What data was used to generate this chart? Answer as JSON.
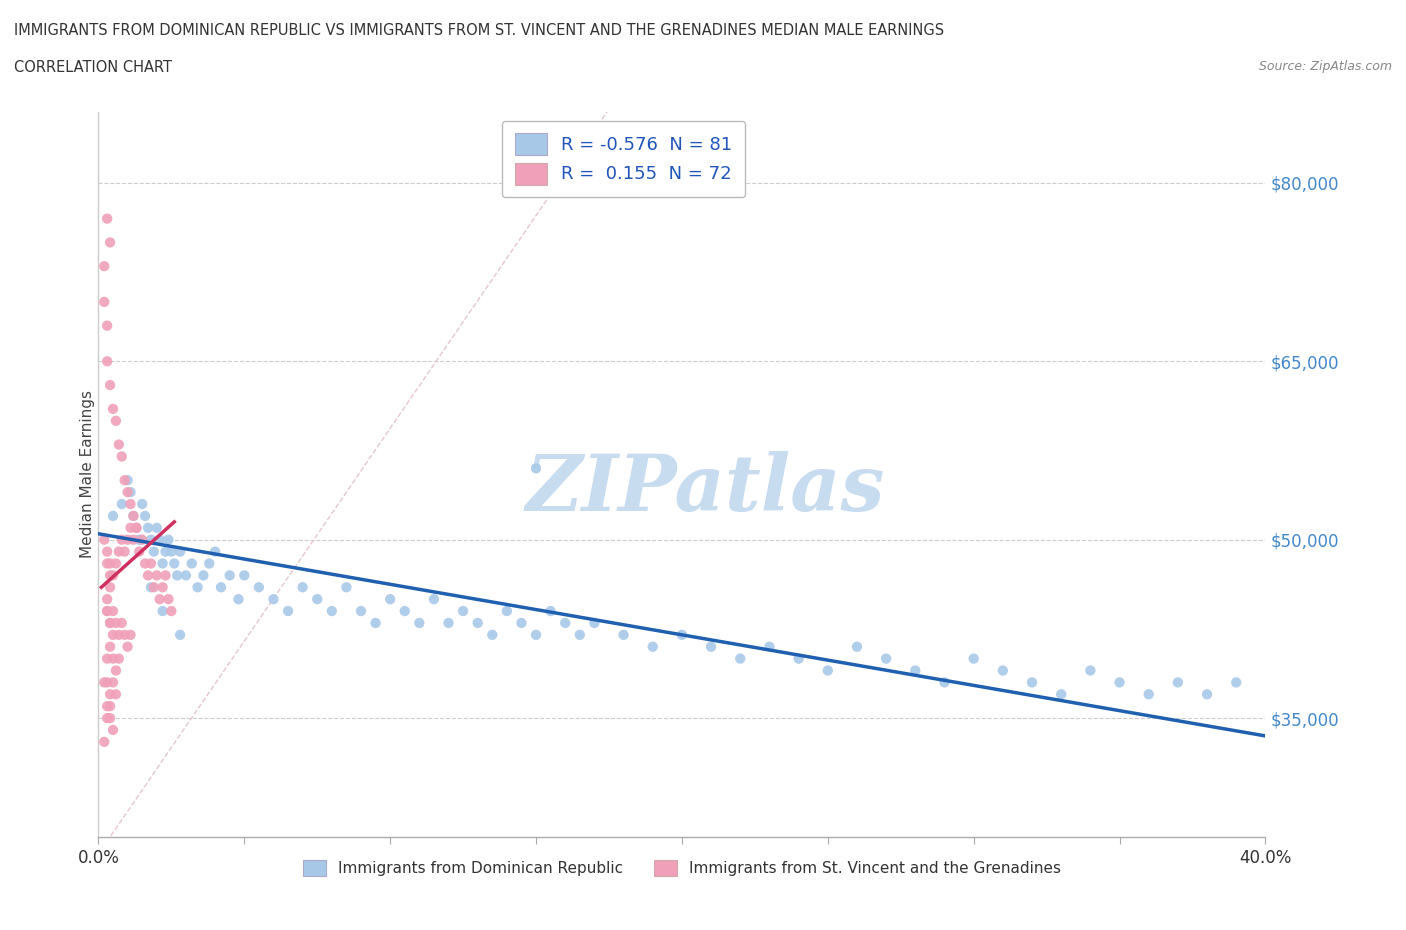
{
  "title_line1": "IMMIGRANTS FROM DOMINICAN REPUBLIC VS IMMIGRANTS FROM ST. VINCENT AND THE GRENADINES MEDIAN MALE EARNINGS",
  "title_line2": "CORRELATION CHART",
  "source_text": "Source: ZipAtlas.com",
  "ylabel": "Median Male Earnings",
  "color_blue": "#A8C8E8",
  "color_pink": "#F0A0B8",
  "color_blue_line": "#2060B0",
  "color_pink_line": "#D03060",
  "color_diagonal": "#E0B8C0",
  "watermark_color": "#C8DCF0",
  "ytick_color": "#4488CC",
  "legend_label1": "R = -0.576  N = 81",
  "legend_label2": "R =  0.155  N = 72",
  "bot_label1": "Immigrants from Dominican Republic",
  "bot_label2": "Immigrants from St. Vincent and the Grenadines",
  "blue_x": [
    0.005,
    0.008,
    0.01,
    0.011,
    0.012,
    0.013,
    0.014,
    0.015,
    0.016,
    0.017,
    0.018,
    0.019,
    0.02,
    0.021,
    0.022,
    0.023,
    0.024,
    0.025,
    0.026,
    0.027,
    0.028,
    0.03,
    0.032,
    0.034,
    0.036,
    0.038,
    0.04,
    0.042,
    0.045,
    0.048,
    0.05,
    0.055,
    0.06,
    0.065,
    0.07,
    0.075,
    0.08,
    0.085,
    0.09,
    0.095,
    0.1,
    0.105,
    0.11,
    0.115,
    0.12,
    0.125,
    0.13,
    0.135,
    0.14,
    0.145,
    0.15,
    0.155,
    0.16,
    0.165,
    0.17,
    0.18,
    0.19,
    0.2,
    0.21,
    0.22,
    0.23,
    0.24,
    0.25,
    0.26,
    0.27,
    0.28,
    0.29,
    0.3,
    0.31,
    0.32,
    0.33,
    0.34,
    0.35,
    0.36,
    0.37,
    0.38,
    0.39,
    0.018,
    0.022,
    0.028,
    0.15
  ],
  "blue_y": [
    52000,
    53000,
    55000,
    54000,
    52000,
    51000,
    50000,
    53000,
    52000,
    51000,
    50000,
    49000,
    51000,
    50000,
    48000,
    49000,
    50000,
    49000,
    48000,
    47000,
    49000,
    47000,
    48000,
    46000,
    47000,
    48000,
    49000,
    46000,
    47000,
    45000,
    47000,
    46000,
    45000,
    44000,
    46000,
    45000,
    44000,
    46000,
    44000,
    43000,
    45000,
    44000,
    43000,
    45000,
    43000,
    44000,
    43000,
    42000,
    44000,
    43000,
    42000,
    44000,
    43000,
    42000,
    43000,
    42000,
    41000,
    42000,
    41000,
    40000,
    41000,
    40000,
    39000,
    41000,
    40000,
    39000,
    38000,
    40000,
    39000,
    38000,
    37000,
    39000,
    38000,
    37000,
    38000,
    37000,
    38000,
    46000,
    44000,
    42000,
    56000
  ],
  "pink_x": [
    0.002,
    0.003,
    0.004,
    0.005,
    0.006,
    0.007,
    0.008,
    0.009,
    0.01,
    0.011,
    0.012,
    0.013,
    0.014,
    0.015,
    0.016,
    0.017,
    0.018,
    0.019,
    0.02,
    0.021,
    0.022,
    0.023,
    0.024,
    0.025,
    0.003,
    0.004,
    0.005,
    0.006,
    0.007,
    0.008,
    0.009,
    0.01,
    0.011,
    0.012,
    0.013,
    0.003,
    0.004,
    0.005,
    0.006,
    0.007,
    0.008,
    0.009,
    0.01,
    0.011,
    0.003,
    0.004,
    0.005,
    0.006,
    0.007,
    0.002,
    0.003,
    0.004,
    0.005,
    0.006,
    0.003,
    0.003,
    0.004,
    0.004,
    0.005,
    0.003,
    0.004,
    0.004,
    0.003,
    0.003,
    0.004,
    0.005,
    0.003,
    0.004,
    0.002,
    0.002,
    0.003,
    0.002
  ],
  "pink_y": [
    50000,
    49000,
    48000,
    47000,
    48000,
    49000,
    50000,
    49000,
    50000,
    51000,
    50000,
    51000,
    49000,
    50000,
    48000,
    47000,
    48000,
    46000,
    47000,
    45000,
    46000,
    47000,
    45000,
    44000,
    65000,
    63000,
    61000,
    60000,
    58000,
    57000,
    55000,
    54000,
    53000,
    52000,
    51000,
    44000,
    43000,
    44000,
    43000,
    42000,
    43000,
    42000,
    41000,
    42000,
    40000,
    41000,
    40000,
    39000,
    40000,
    38000,
    38000,
    37000,
    38000,
    37000,
    36000,
    35000,
    36000,
    35000,
    34000,
    48000,
    47000,
    46000,
    45000,
    44000,
    43000,
    42000,
    77000,
    75000,
    73000,
    70000,
    68000,
    33000
  ]
}
